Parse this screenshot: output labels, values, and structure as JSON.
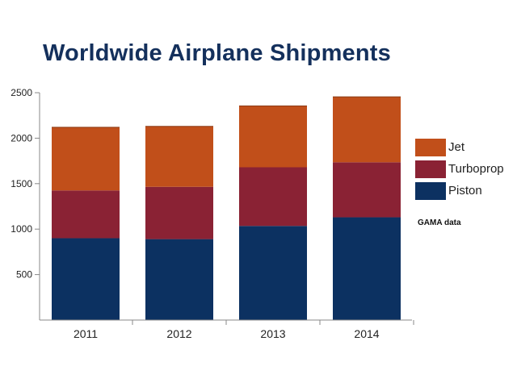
{
  "chart_data": {
    "type": "bar",
    "stacked": true,
    "title": "Worldwide Airplane Shipments",
    "categories": [
      "2011",
      "2012",
      "2013",
      "2014"
    ],
    "series": [
      {
        "name": "Piston",
        "color": "#0c3161",
        "values": [
          900,
          890,
          1035,
          1130
        ]
      },
      {
        "name": "Turboprop",
        "color": "#8a2234",
        "values": [
          525,
          575,
          645,
          605
        ]
      },
      {
        "name": "Jet",
        "color": "#c14f1a",
        "values": [
          695,
          665,
          675,
          720
        ]
      }
    ],
    "yticks": [
      500,
      1000,
      1500,
      2000,
      2500
    ],
    "ylim": [
      0,
      2500
    ],
    "xlabel": "",
    "ylabel": "",
    "legend_position": "right",
    "legend_order": [
      "Jet",
      "Turboprop",
      "Piston"
    ],
    "note": "GAMA data",
    "grid": false
  }
}
